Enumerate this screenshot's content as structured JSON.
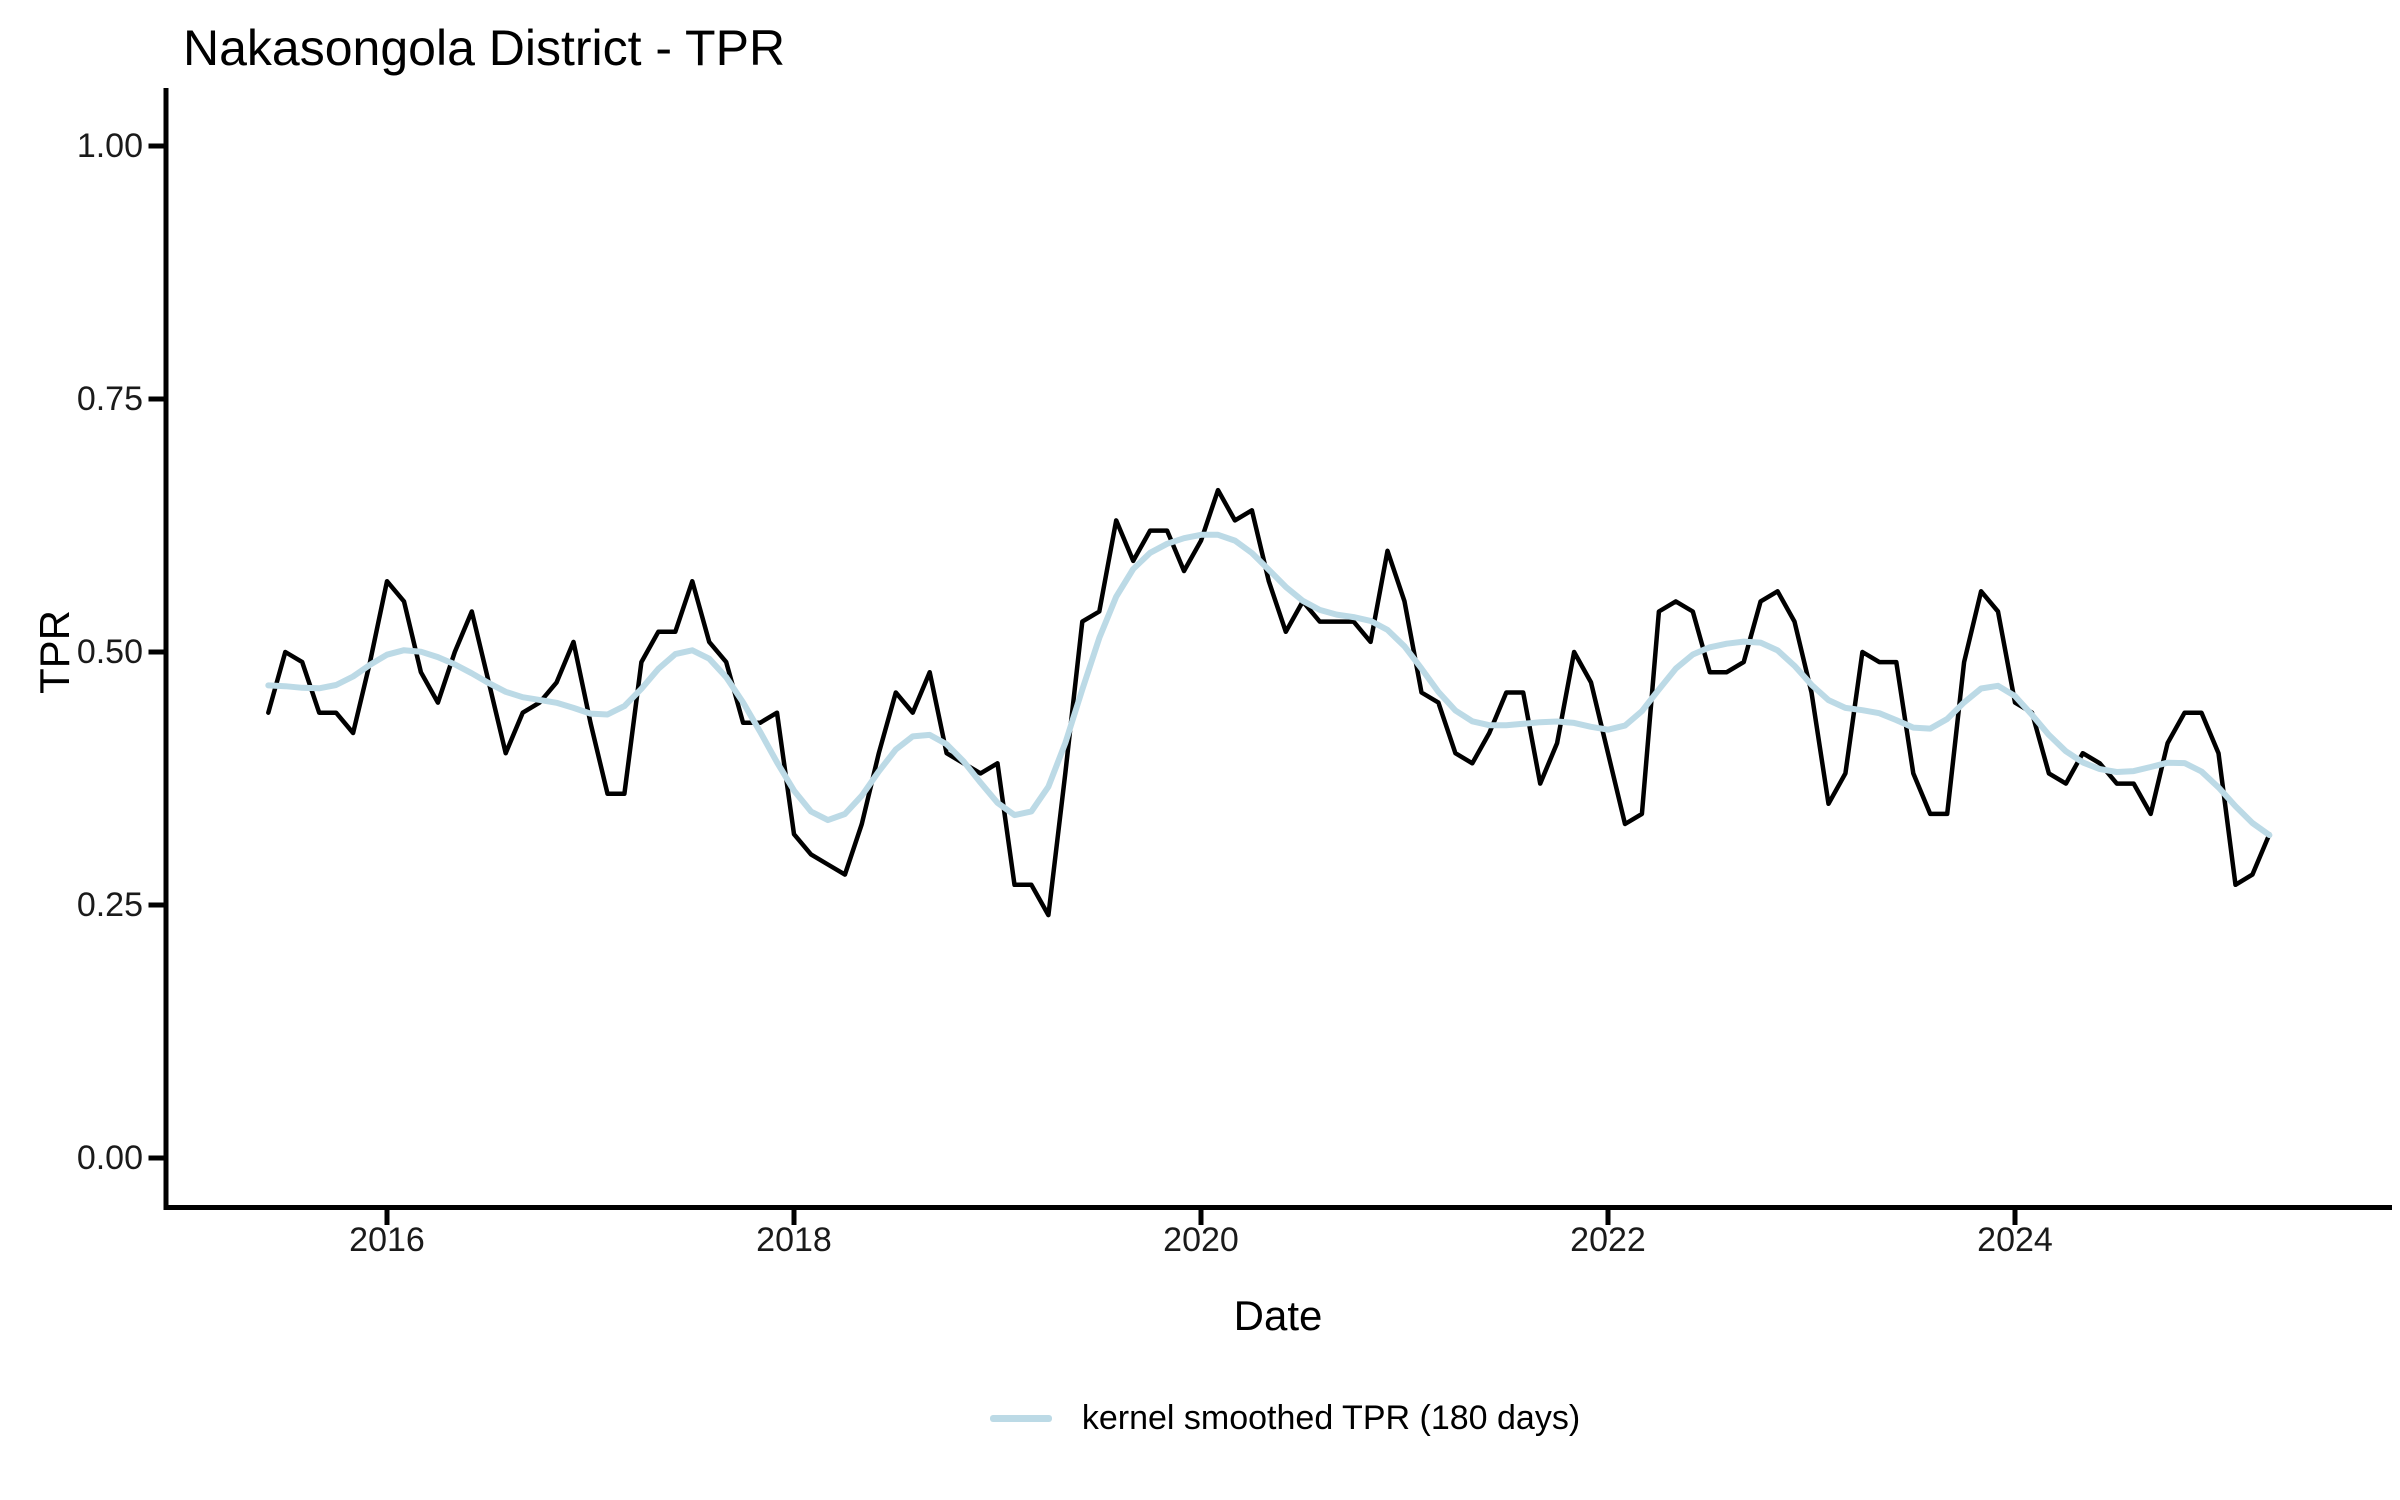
{
  "title": "Nakasongola District - TPR",
  "axes": {
    "x_label": "Date",
    "y_label": "TPR",
    "y_ticks": [
      {
        "label": "0.00",
        "value": 0.0
      },
      {
        "label": "0.25",
        "value": 0.25
      },
      {
        "label": "0.50",
        "value": 0.5
      },
      {
        "label": "0.75",
        "value": 0.75
      },
      {
        "label": "1.00",
        "value": 1.0
      }
    ],
    "x_ticks": [
      {
        "label": "2016",
        "year": 2016
      },
      {
        "label": "2018",
        "year": 2018
      },
      {
        "label": "2020",
        "year": 2020
      },
      {
        "label": "2022",
        "year": 2022
      },
      {
        "label": "2024",
        "year": 2024
      }
    ]
  },
  "legend": {
    "label": "kernel smoothed TPR (180 days)",
    "swatch_color": "#bcdae6"
  },
  "chart_data": {
    "type": "line",
    "title": "Nakasongola District - TPR",
    "xlabel": "Date",
    "ylabel": "TPR",
    "ylim": [
      0,
      1
    ],
    "xlim_years": [
      2015.3,
      2025.75
    ],
    "grid": false,
    "legend_position": "bottom-center",
    "x_start_month": "2015-06",
    "x_end_month": "2025-04",
    "x_step": "1 month",
    "y_tick_values": [
      0,
      0.25,
      0.5,
      0.75,
      1
    ],
    "x_tick_years": [
      2016,
      2018,
      2020,
      2022,
      2024
    ],
    "series": [
      {
        "name": "TPR",
        "color": "#000000",
        "stroke_width": 4.5,
        "values": [
          0.44,
          0.5,
          0.49,
          0.44,
          0.44,
          0.42,
          0.49,
          0.57,
          0.55,
          0.48,
          0.45,
          0.5,
          0.54,
          0.47,
          0.4,
          0.44,
          0.45,
          0.47,
          0.51,
          0.43,
          0.36,
          0.36,
          0.49,
          0.52,
          0.52,
          0.57,
          0.51,
          0.49,
          0.43,
          0.43,
          0.44,
          0.32,
          0.3,
          0.29,
          0.28,
          0.33,
          0.4,
          0.46,
          0.44,
          0.48,
          0.4,
          0.39,
          0.38,
          0.39,
          0.27,
          0.27,
          0.24,
          0.38,
          0.53,
          0.54,
          0.63,
          0.59,
          0.62,
          0.62,
          0.58,
          0.61,
          0.66,
          0.63,
          0.64,
          0.57,
          0.52,
          0.55,
          0.53,
          0.53,
          0.53,
          0.51,
          0.6,
          0.55,
          0.46,
          0.45,
          0.4,
          0.39,
          0.42,
          0.46,
          0.46,
          0.37,
          0.41,
          0.5,
          0.47,
          0.4,
          0.33,
          0.34,
          0.54,
          0.55,
          0.54,
          0.48,
          0.48,
          0.49,
          0.55,
          0.56,
          0.53,
          0.46,
          0.35,
          0.38,
          0.5,
          0.49,
          0.49,
          0.38,
          0.34,
          0.34,
          0.49,
          0.56,
          0.54,
          0.45,
          0.44,
          0.38,
          0.37,
          0.4,
          0.39,
          0.37,
          0.37,
          0.34,
          0.41,
          0.44,
          0.44,
          0.4,
          0.27,
          0.28,
          0.32
        ]
      },
      {
        "name": "kernel smoothed TPR (180 days)",
        "color": "#bcdae6",
        "stroke_width": 6,
        "derived_from": "TPR",
        "method": "gaussian kernel smoothing, bandwidth 180 days (sigma ~2.2 months)"
      }
    ]
  }
}
